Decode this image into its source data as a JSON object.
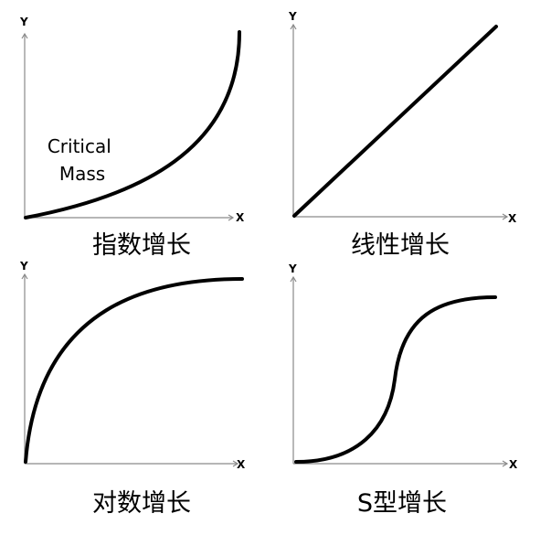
{
  "panels": [
    {
      "y_label": "Y",
      "x_label": "X",
      "caption": "指数增长",
      "annotation": "Critical\nMass"
    },
    {
      "y_label": "Y",
      "x_label": "X",
      "caption": "线性增长"
    },
    {
      "y_label": "Y",
      "x_label": "X",
      "caption": "对数增长"
    },
    {
      "y_label": "Y",
      "x_label": "X",
      "caption": "S型增长"
    }
  ],
  "colors": {
    "curve": "#000000",
    "axis": "#8a8a8a",
    "text": "#000000",
    "background": "#ffffff"
  }
}
